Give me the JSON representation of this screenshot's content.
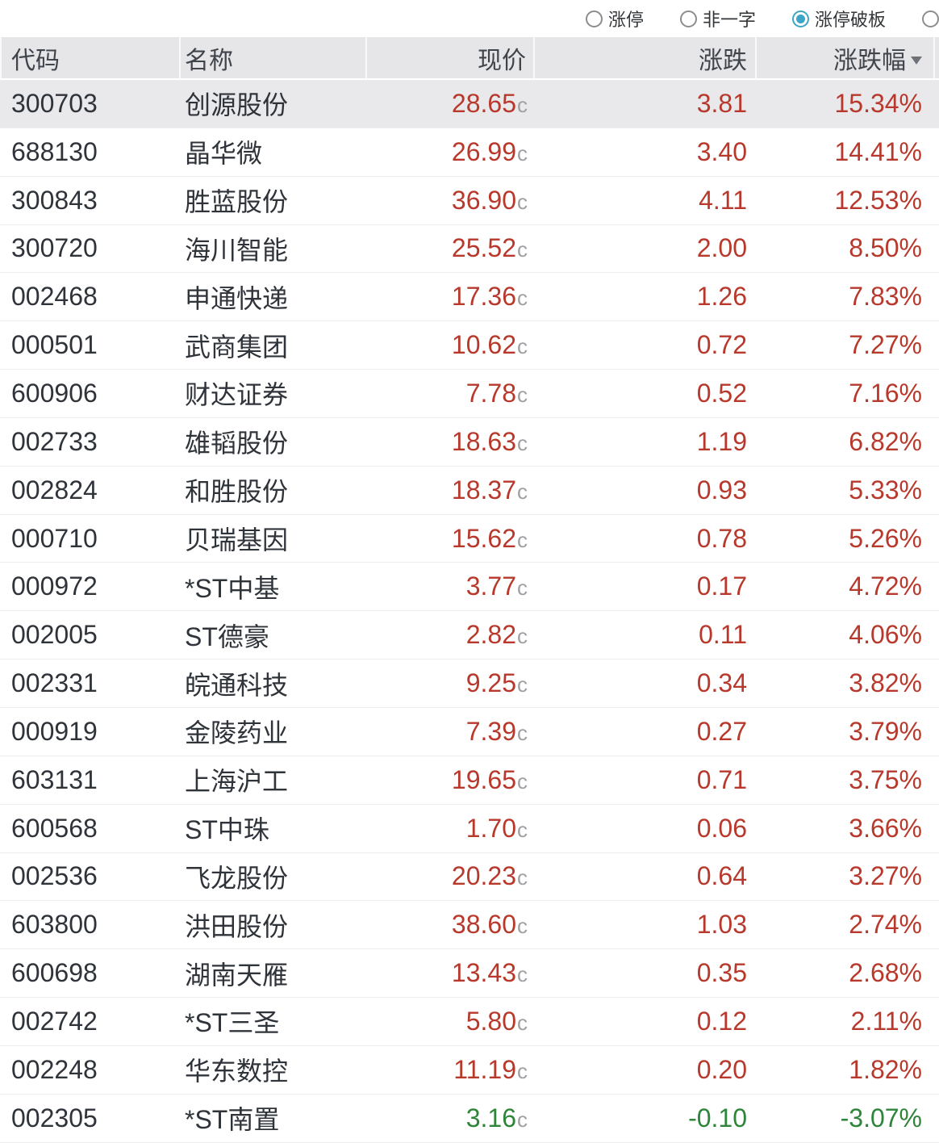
{
  "colors": {
    "up": "#b8392c",
    "down": "#2e8539",
    "accent": "#3ba6c8",
    "header_bg": "#e6e6e8",
    "selected_row_bg": "#e9e9eb"
  },
  "filter_bar": {
    "options": [
      {
        "label": "涨停",
        "selected": false
      },
      {
        "label": "非一字",
        "selected": false
      },
      {
        "label": "涨停破板",
        "selected": true
      },
      {
        "label": "",
        "selected": false
      }
    ]
  },
  "table": {
    "columns": [
      {
        "key": "code",
        "label": "代码",
        "align": "left"
      },
      {
        "key": "name",
        "label": "名称",
        "align": "left"
      },
      {
        "key": "price",
        "label": "现价",
        "align": "right"
      },
      {
        "key": "change",
        "label": "涨跌",
        "align": "right"
      },
      {
        "key": "change_percent",
        "label": "涨跌幅",
        "align": "right",
        "sorted": "desc"
      }
    ],
    "rows": [
      {
        "code": "300703",
        "name": "创源股份",
        "price": "28.65",
        "price_suffix": "c",
        "change": "3.81",
        "change_percent": "15.34%",
        "trend": "up",
        "selected": true
      },
      {
        "code": "688130",
        "name": "晶华微",
        "price": "26.99",
        "price_suffix": "c",
        "change": "3.40",
        "change_percent": "14.41%",
        "trend": "up",
        "selected": false
      },
      {
        "code": "300843",
        "name": "胜蓝股份",
        "price": "36.90",
        "price_suffix": "c",
        "change": "4.11",
        "change_percent": "12.53%",
        "trend": "up",
        "selected": false
      },
      {
        "code": "300720",
        "name": "海川智能",
        "price": "25.52",
        "price_suffix": "c",
        "change": "2.00",
        "change_percent": "8.50%",
        "trend": "up",
        "selected": false
      },
      {
        "code": "002468",
        "name": "申通快递",
        "price": "17.36",
        "price_suffix": "c",
        "change": "1.26",
        "change_percent": "7.83%",
        "trend": "up",
        "selected": false
      },
      {
        "code": "000501",
        "name": "武商集团",
        "price": "10.62",
        "price_suffix": "c",
        "change": "0.72",
        "change_percent": "7.27%",
        "trend": "up",
        "selected": false
      },
      {
        "code": "600906",
        "name": "财达证券",
        "price": "7.78",
        "price_suffix": "c",
        "change": "0.52",
        "change_percent": "7.16%",
        "trend": "up",
        "selected": false
      },
      {
        "code": "002733",
        "name": "雄韬股份",
        "price": "18.63",
        "price_suffix": "c",
        "change": "1.19",
        "change_percent": "6.82%",
        "trend": "up",
        "selected": false
      },
      {
        "code": "002824",
        "name": "和胜股份",
        "price": "18.37",
        "price_suffix": "c",
        "change": "0.93",
        "change_percent": "5.33%",
        "trend": "up",
        "selected": false
      },
      {
        "code": "000710",
        "name": "贝瑞基因",
        "price": "15.62",
        "price_suffix": "c",
        "change": "0.78",
        "change_percent": "5.26%",
        "trend": "up",
        "selected": false
      },
      {
        "code": "000972",
        "name": "*ST中基",
        "price": "3.77",
        "price_suffix": "c",
        "change": "0.17",
        "change_percent": "4.72%",
        "trend": "up",
        "selected": false
      },
      {
        "code": "002005",
        "name": "ST德豪",
        "price": "2.82",
        "price_suffix": "c",
        "change": "0.11",
        "change_percent": "4.06%",
        "trend": "up",
        "selected": false
      },
      {
        "code": "002331",
        "name": "皖通科技",
        "price": "9.25",
        "price_suffix": "c",
        "change": "0.34",
        "change_percent": "3.82%",
        "trend": "up",
        "selected": false
      },
      {
        "code": "000919",
        "name": "金陵药业",
        "price": "7.39",
        "price_suffix": "c",
        "change": "0.27",
        "change_percent": "3.79%",
        "trend": "up",
        "selected": false
      },
      {
        "code": "603131",
        "name": "上海沪工",
        "price": "19.65",
        "price_suffix": "c",
        "change": "0.71",
        "change_percent": "3.75%",
        "trend": "up",
        "selected": false
      },
      {
        "code": "600568",
        "name": "ST中珠",
        "price": "1.70",
        "price_suffix": "c",
        "change": "0.06",
        "change_percent": "3.66%",
        "trend": "up",
        "selected": false
      },
      {
        "code": "002536",
        "name": "飞龙股份",
        "price": "20.23",
        "price_suffix": "c",
        "change": "0.64",
        "change_percent": "3.27%",
        "trend": "up",
        "selected": false
      },
      {
        "code": "603800",
        "name": "洪田股份",
        "price": "38.60",
        "price_suffix": "c",
        "change": "1.03",
        "change_percent": "2.74%",
        "trend": "up",
        "selected": false
      },
      {
        "code": "600698",
        "name": "湖南天雁",
        "price": "13.43",
        "price_suffix": "c",
        "change": "0.35",
        "change_percent": "2.68%",
        "trend": "up",
        "selected": false
      },
      {
        "code": "002742",
        "name": "*ST三圣",
        "price": "5.80",
        "price_suffix": "c",
        "change": "0.12",
        "change_percent": "2.11%",
        "trend": "up",
        "selected": false
      },
      {
        "code": "002248",
        "name": "华东数控",
        "price": "11.19",
        "price_suffix": "c",
        "change": "0.20",
        "change_percent": "1.82%",
        "trend": "up",
        "selected": false
      },
      {
        "code": "002305",
        "name": "*ST南置",
        "price": "3.16",
        "price_suffix": "c",
        "change": "-0.10",
        "change_percent": "-3.07%",
        "trend": "down",
        "selected": false
      }
    ]
  }
}
